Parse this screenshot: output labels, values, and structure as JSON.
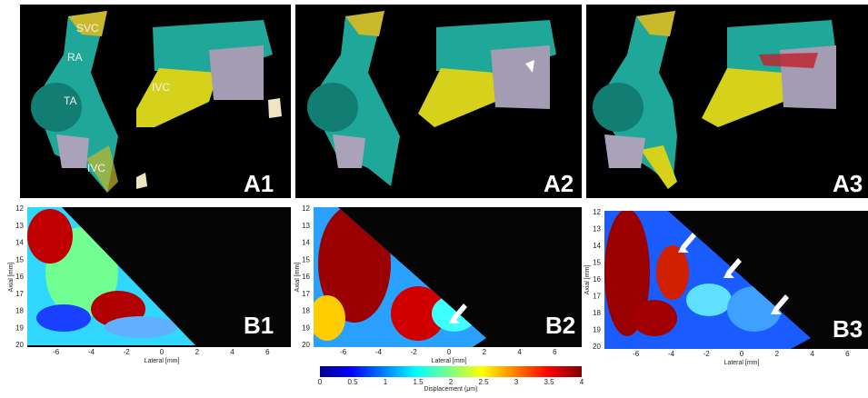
{
  "panels_a": [
    {
      "label": "A1",
      "annotations": [
        "SVC",
        "RA",
        "TA",
        "IVC",
        "IVC"
      ]
    },
    {
      "label": "A2"
    },
    {
      "label": "A3"
    }
  ],
  "panels_b": [
    {
      "label": "B1"
    },
    {
      "label": "B2"
    },
    {
      "label": "B3"
    }
  ],
  "axis": {
    "y_label": "Axial [mm]",
    "x_label": "Lateral [mm]",
    "y_ticks": [
      12,
      13,
      14,
      15,
      16,
      17,
      18,
      19,
      20
    ],
    "x_ticks": [
      -6,
      -4,
      -2,
      0,
      2,
      4,
      6
    ]
  },
  "colorbar": {
    "label": "Displacement (μm)",
    "ticks": [
      0,
      0.5,
      1,
      1.5,
      2,
      2.5,
      3,
      3.5,
      4
    ]
  }
}
